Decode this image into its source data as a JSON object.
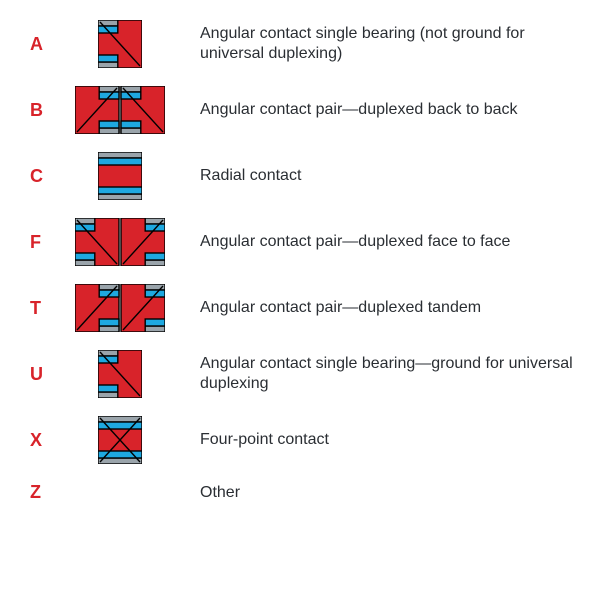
{
  "items": [
    {
      "code": "A",
      "desc": "Angular contact single bearing (not ground for universal duplexing)",
      "icon": "single-angular-left"
    },
    {
      "code": "B",
      "desc": "Angular contact pair—duplexed back to back",
      "icon": "pair-back-to-back"
    },
    {
      "code": "C",
      "desc": "Radial contact",
      "icon": "single-radial"
    },
    {
      "code": "F",
      "desc": "Angular contact pair—duplexed face to face",
      "icon": "pair-face-to-face"
    },
    {
      "code": "T",
      "desc": "Angular contact pair—duplexed tandem",
      "icon": "pair-tandem"
    },
    {
      "code": "U",
      "desc": "Angular contact single bearing—ground for universal duplexing",
      "icon": "single-angular-universal"
    },
    {
      "code": "X",
      "desc": "Four-point contact",
      "icon": "single-fourpoint"
    },
    {
      "code": "Z",
      "desc": "Other",
      "icon": "none"
    }
  ],
  "colors": {
    "code_text": "#d8232a",
    "desc_text": "#2a2e33",
    "bearing_red": "#d8232a",
    "bearing_blue": "#1ea8e0",
    "bearing_grey": "#9aa4ab",
    "stroke": "#000000",
    "bg": "#ffffff"
  },
  "fonts": {
    "code_size": 18,
    "desc_size": 16
  },
  "layout": {
    "row_gap": 18,
    "code_col_w": 30,
    "icon_col_w": 120
  }
}
